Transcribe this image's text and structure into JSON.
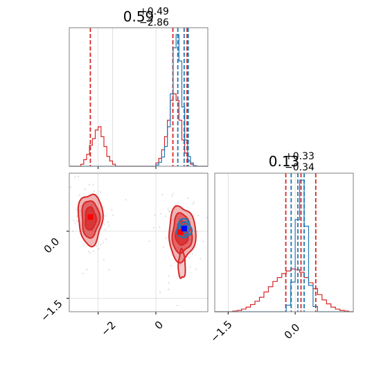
{
  "chart_data": [
    {
      "type": "histogram",
      "panel": "top-left (parameter 1 marginal)",
      "title": {
        "median": "0.59",
        "plus": "+0.49",
        "minus": "−2.86"
      },
      "xlim": [
        -3.0,
        1.8
      ],
      "bins": [
        -3.0,
        -2.9,
        -2.8,
        -2.7,
        -2.6,
        -2.5,
        -2.4,
        -2.3,
        -2.2,
        -2.1,
        -2.0,
        -1.9,
        -1.8,
        -1.7,
        -1.6,
        -1.5,
        -1.4,
        -1.3,
        -1.2,
        -1.1,
        -1.0,
        -0.9,
        -0.8,
        -0.7,
        -0.6,
        -0.5,
        -0.4,
        -0.3,
        -0.2,
        -0.1,
        0.0,
        0.1,
        0.2,
        0.3,
        0.4,
        0.5,
        0.6,
        0.7,
        0.8,
        0.9,
        1.0,
        1.1,
        1.2,
        1.3,
        1.4,
        1.5,
        1.6,
        1.7,
        1.8
      ],
      "series": [
        {
          "color": "#d62728",
          "counts": [
            0,
            0,
            0,
            0,
            3,
            10,
            18,
            32,
            42,
            55,
            60,
            45,
            30,
            15,
            8,
            3,
            0,
            0,
            0,
            0,
            0,
            0,
            0,
            0,
            0,
            0,
            0,
            0,
            0,
            0,
            5,
            12,
            25,
            45,
            70,
            100,
            110,
            100,
            70,
            40,
            20,
            8,
            3,
            0,
            0,
            0,
            0,
            0
          ],
          "quantiles": [
            -2.27,
            0.59,
            1.08
          ]
        },
        {
          "color": "#1f77b4",
          "counts": [
            0,
            0,
            0,
            0,
            0,
            0,
            0,
            0,
            0,
            0,
            0,
            0,
            0,
            0,
            0,
            0,
            0,
            0,
            0,
            0,
            0,
            0,
            0,
            0,
            0,
            0,
            0,
            0,
            0,
            0,
            2,
            6,
            14,
            30,
            60,
            110,
            180,
            200,
            160,
            90,
            40,
            15,
            5,
            1,
            0,
            0,
            0,
            0
          ],
          "quantiles": [
            0.76,
            0.98,
            1.12
          ]
        }
      ]
    },
    {
      "type": "histogram",
      "panel": "bottom-right (parameter 2 marginal)",
      "title": {
        "median": "0.13",
        "plus": "+0.33",
        "minus": "−0.34"
      },
      "xlim": [
        -1.8,
        1.3
      ],
      "xticks": [
        "−1.5",
        "0.0"
      ],
      "bins": [
        -1.8,
        -1.7,
        -1.6,
        -1.5,
        -1.4,
        -1.3,
        -1.2,
        -1.1,
        -1.0,
        -0.9,
        -0.8,
        -0.7,
        -0.6,
        -0.5,
        -0.4,
        -0.3,
        -0.2,
        -0.1,
        0.0,
        0.1,
        0.2,
        0.3,
        0.4,
        0.5,
        0.6,
        0.7,
        0.8,
        0.9,
        1.0,
        1.1,
        1.2,
        1.3
      ],
      "series": [
        {
          "color": "#d62728",
          "counts": [
            0,
            0,
            0,
            0,
            1,
            2,
            4,
            7,
            11,
            16,
            22,
            30,
            38,
            46,
            52,
            58,
            62,
            65,
            64,
            60,
            52,
            44,
            35,
            26,
            18,
            12,
            7,
            4,
            2,
            1,
            0
          ],
          "quantiles": [
            -0.21,
            0.13,
            0.46
          ]
        },
        {
          "color": "#1f77b4",
          "counts": [
            0,
            0,
            0,
            0,
            0,
            0,
            0,
            0,
            0,
            0,
            0,
            0,
            0,
            0,
            0,
            0,
            10,
            45,
            140,
            200,
            130,
            40,
            8,
            0,
            0,
            0,
            0,
            0,
            0,
            0,
            0
          ],
          "quantiles": [
            -0.09,
            0.06,
            0.2
          ]
        }
      ]
    },
    {
      "type": "contour",
      "panel": "bottom-left (2D joint)",
      "xlim": [
        -3.0,
        1.8
      ],
      "ylim": [
        -1.8,
        1.3
      ],
      "xticks": [
        "−2",
        "0"
      ],
      "yticks": [
        "−1.5",
        "0.0"
      ],
      "series": [
        {
          "color": "#d62728",
          "modes": [
            {
              "x": -2.27,
              "y": 0.28,
              "sx": 0.38,
              "sy": 0.52
            },
            {
              "x": 0.9,
              "y": -0.05,
              "sx": 0.42,
              "sy": 0.55
            }
          ],
          "peaks": [
            {
              "x": -2.27,
              "y": 0.32
            },
            {
              "x": 0.85,
              "y": -0.02
            }
          ]
        },
        {
          "color": "#1f77b4",
          "modes": [
            {
              "x": 0.98,
              "y": 0.06,
              "sx": 0.25,
              "sy": 0.22
            }
          ],
          "peaks": [
            {
              "x": 0.98,
              "y": 0.06
            }
          ]
        }
      ]
    }
  ],
  "colors": {
    "red": "#d62728",
    "blue": "#1f77b4"
  }
}
